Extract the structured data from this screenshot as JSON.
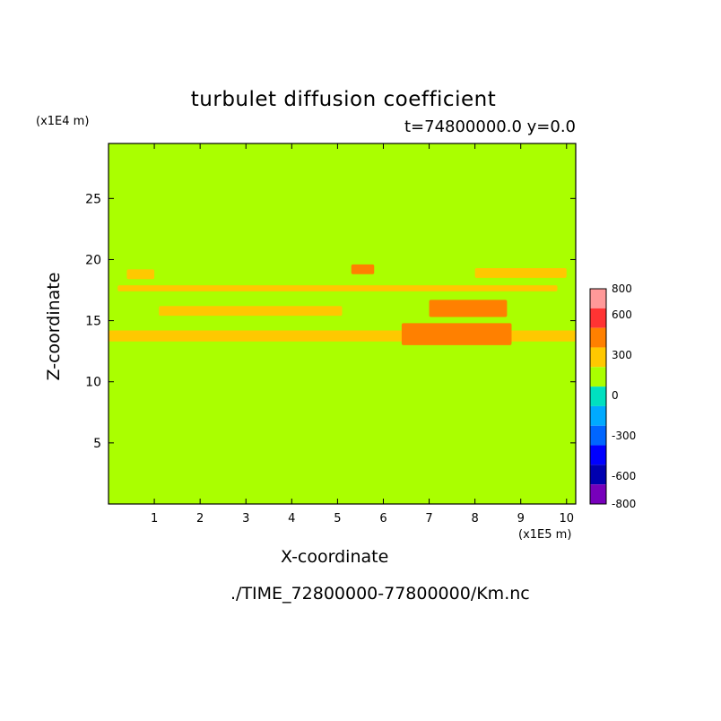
{
  "chart_data": {
    "type": "heatmap",
    "title": "turbulet diffusion coefficient",
    "time_label": "t=74800000.0 y=0.0",
    "xlabel": "X-coordinate",
    "ylabel": "Z-coordinate",
    "x_scale_label": "(x1E5 m)",
    "z_scale_label": "(x1E4 m)",
    "file_label": "./TIME_72800000-77800000/Km.nc",
    "xlim": [
      0,
      10.2
    ],
    "ylim": [
      0,
      29.5
    ],
    "x_ticks": [
      "1",
      "2",
      "3",
      "4",
      "5",
      "6",
      "7",
      "8",
      "9",
      "10"
    ],
    "y_ticks": [
      "5",
      "10",
      "15",
      "20",
      "25"
    ],
    "grid": false,
    "background_value_color": "#aaff00",
    "colorbar": {
      "tick_labels": [
        "800",
        "600",
        "300",
        "0",
        "-300",
        "-600",
        "-800"
      ],
      "colors": [
        "#ff9999",
        "#ff3333",
        "#ff8000",
        "#ffc800",
        "#aaff00",
        "#00e0c0",
        "#00aaff",
        "#0066ff",
        "#0000ff",
        "#0000b0",
        "#7700bb"
      ]
    },
    "features": [
      {
        "x": [
          0.0,
          10.2
        ],
        "z": [
          13.3,
          14.2
        ],
        "level": "300"
      },
      {
        "x": [
          0.2,
          9.8
        ],
        "z": [
          17.4,
          17.9
        ],
        "level": "300"
      },
      {
        "x": [
          0.4,
          1.0
        ],
        "z": [
          18.4,
          19.2
        ],
        "level": "300"
      },
      {
        "x": [
          1.1,
          5.1
        ],
        "z": [
          15.4,
          16.2
        ],
        "level": "300"
      },
      {
        "x": [
          6.4,
          8.8
        ],
        "z": [
          13.0,
          14.8
        ],
        "level": "600"
      },
      {
        "x": [
          7.0,
          8.7
        ],
        "z": [
          15.3,
          16.7
        ],
        "level": "600"
      },
      {
        "x": [
          5.3,
          5.8
        ],
        "z": [
          18.8,
          19.6
        ],
        "level": "600"
      },
      {
        "x": [
          8.0,
          10.0
        ],
        "z": [
          18.5,
          19.3
        ],
        "level": "300"
      }
    ]
  }
}
